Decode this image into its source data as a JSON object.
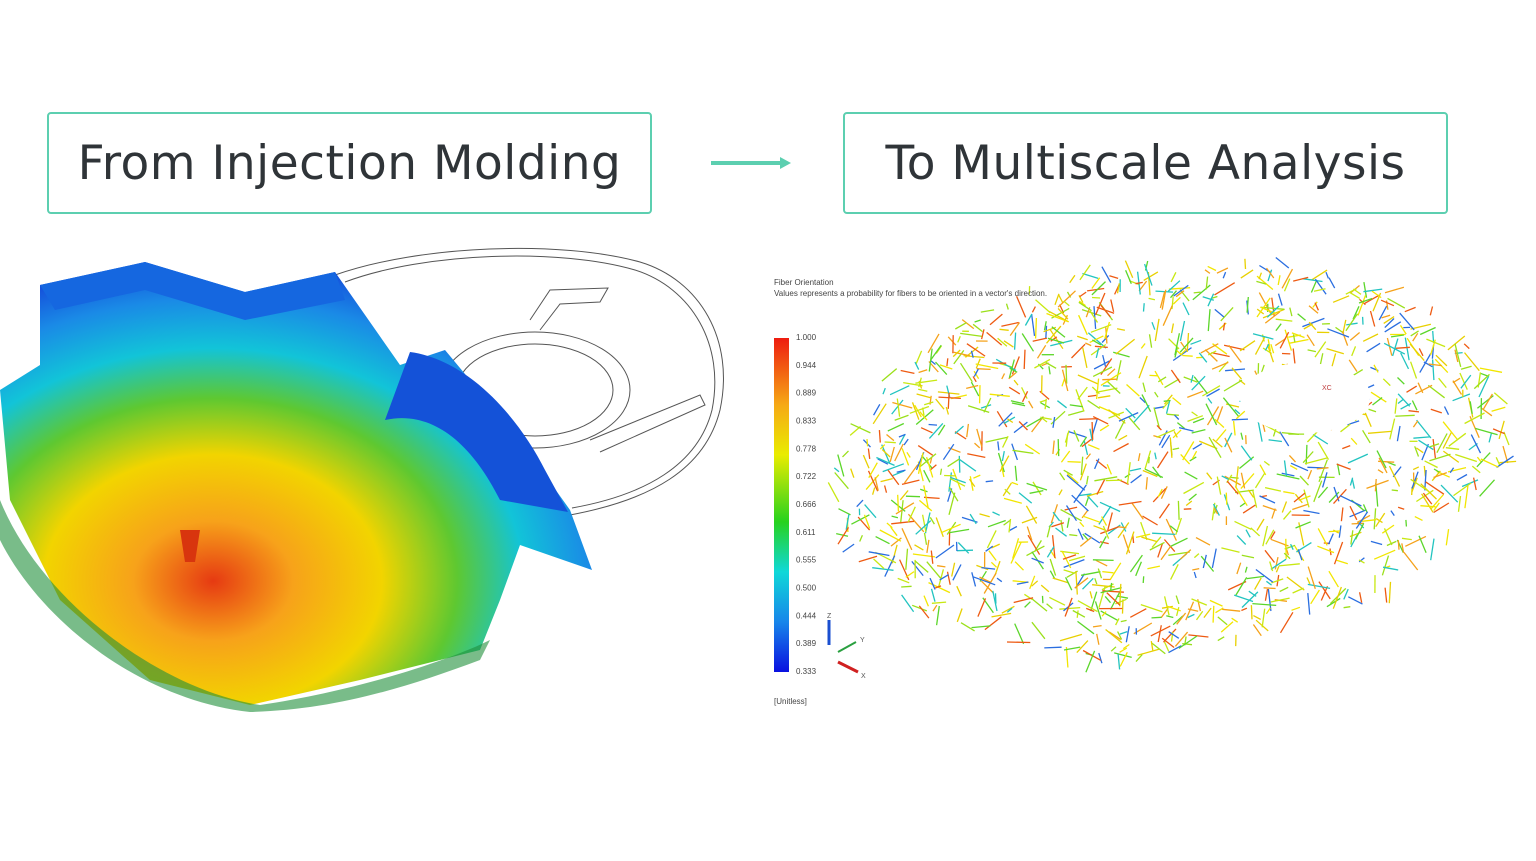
{
  "header": {
    "left_title": "From Injection Molding",
    "right_title": "To Multiscale Analysis"
  },
  "fiber_panel": {
    "title": "Fiber Orientation",
    "subtitle": "Values represents a probability for fibers to be oriented in a vector's direction.",
    "legend_ticks": [
      "1.000",
      "0.944",
      "0.889",
      "0.833",
      "0.778",
      "0.722",
      "0.666",
      "0.611",
      "0.555",
      "0.500",
      "0.444",
      "0.389",
      "0.333"
    ],
    "unit": "[Unitless]",
    "axes": [
      "Z",
      "Y",
      "X"
    ],
    "csys_label": "XC"
  }
}
